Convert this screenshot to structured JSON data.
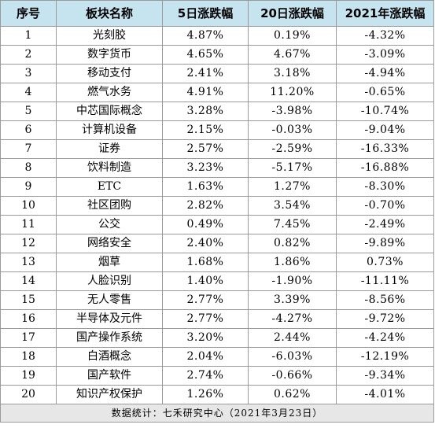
{
  "headers": [
    "序号",
    "板块名称",
    "5日涨跌幅",
    "20日涨跌幅",
    "2021年涨跌幅"
  ],
  "rows": [
    [
      "1",
      "光刻胶",
      "4.87%",
      "0.19%",
      "-4.32%"
    ],
    [
      "2",
      "数字货币",
      "4.65%",
      "4.67%",
      "-3.09%"
    ],
    [
      "3",
      "移动支付",
      "2.41%",
      "3.18%",
      "-4.94%"
    ],
    [
      "4",
      "燃气水务",
      "4.91%",
      "11.20%",
      "-0.65%"
    ],
    [
      "5",
      "中芯国际概念",
      "3.28%",
      "-3.98%",
      "-10.74%"
    ],
    [
      "6",
      "计算机设备",
      "2.15%",
      "-0.03%",
      "-9.04%"
    ],
    [
      "7",
      "证券",
      "2.57%",
      "-2.59%",
      "-16.33%"
    ],
    [
      "8",
      "饮料制造",
      "3.23%",
      "-5.17%",
      "-16.88%"
    ],
    [
      "9",
      "ETC",
      "1.63%",
      "1.27%",
      "-8.30%"
    ],
    [
      "10",
      "社区团购",
      "2.82%",
      "3.54%",
      "-0.70%"
    ],
    [
      "11",
      "公交",
      "0.49%",
      "7.45%",
      "-2.49%"
    ],
    [
      "12",
      "网络安全",
      "2.40%",
      "0.82%",
      "-9.89%"
    ],
    [
      "13",
      "烟草",
      "1.68%",
      "1.86%",
      "0.73%"
    ],
    [
      "14",
      "人脸识别",
      "1.40%",
      "-1.90%",
      "-11.11%"
    ],
    [
      "15",
      "无人零售",
      "2.77%",
      "3.39%",
      "-8.56%"
    ],
    [
      "16",
      "半导体及元件",
      "2.77%",
      "-4.27%",
      "-9.72%"
    ],
    [
      "17",
      "国产操作系统",
      "3.20%",
      "2.44%",
      "-4.24%"
    ],
    [
      "18",
      "白酒概念",
      "2.04%",
      "-6.03%",
      "-12.19%"
    ],
    [
      "19",
      "国产软件",
      "2.74%",
      "-0.66%",
      "-9.34%"
    ],
    [
      "20",
      "知识产权保护",
      "1.26%",
      "0.62%",
      "-4.01%"
    ]
  ],
  "footer": "数据统计：七禾研究中心（2021年3月23日）"
}
